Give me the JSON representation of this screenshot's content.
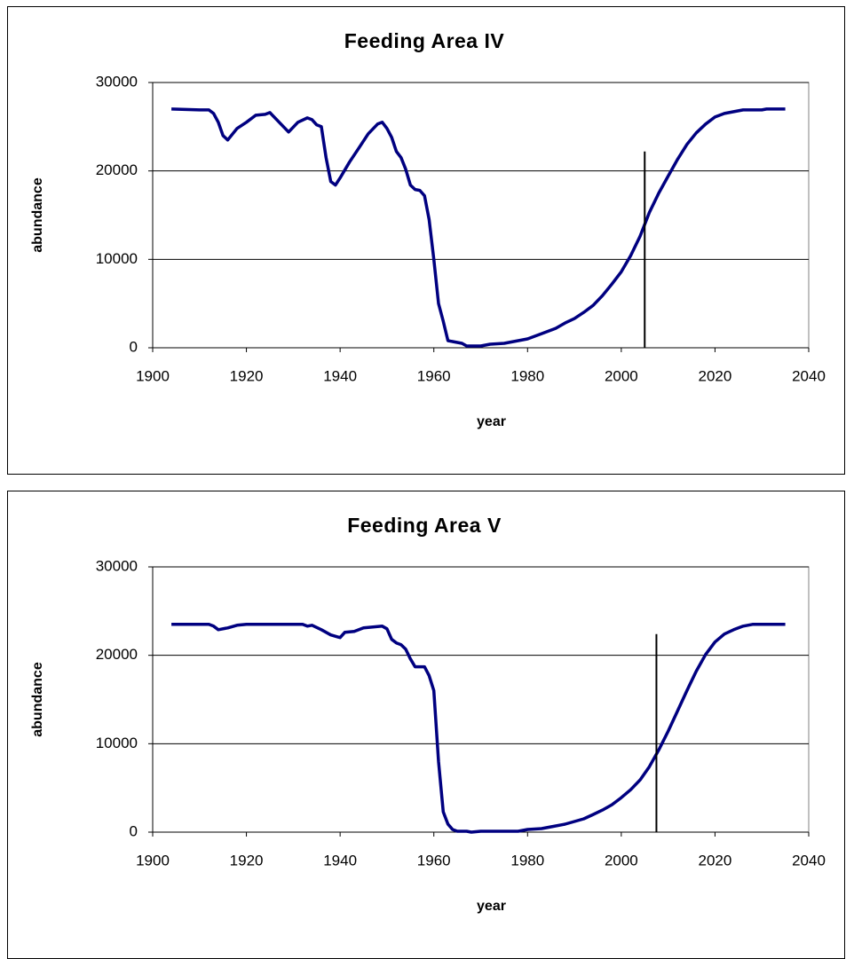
{
  "chart_data": [
    {
      "type": "line",
      "title": "Feeding Area IV",
      "xlabel": "year",
      "ylabel": "abundance",
      "x": [
        1904,
        1910,
        1912,
        1913,
        1914,
        1915,
        1916,
        1918,
        1920,
        1922,
        1924,
        1925,
        1927,
        1929,
        1931,
        1933,
        1934,
        1935,
        1936,
        1937,
        1938,
        1939,
        1940,
        1942,
        1944,
        1946,
        1948,
        1949,
        1950,
        1951,
        1952,
        1953,
        1954,
        1955,
        1956,
        1957,
        1958,
        1959,
        1960,
        1961,
        1962,
        1963,
        1964,
        1966,
        1967,
        1970,
        1972,
        1975,
        1977,
        1980,
        1983,
        1986,
        1988,
        1990,
        1992,
        1994,
        1996,
        1998,
        2000,
        2002,
        2004,
        2006,
        2008,
        2010,
        2012,
        2014,
        2016,
        2018,
        2020,
        2022,
        2024,
        2026,
        2030,
        2031,
        2035
      ],
      "series": [
        {
          "color": "#000080",
          "values": [
            27000,
            26900,
            26900,
            26500,
            25500,
            24000,
            23500,
            24800,
            25500,
            26300,
            26400,
            26600,
            25500,
            24400,
            25500,
            26000,
            25800,
            25200,
            25000,
            21500,
            18800,
            18400,
            19200,
            21000,
            22600,
            24200,
            25300,
            25500,
            24800,
            23800,
            22200,
            21500,
            20200,
            18400,
            17900,
            17800,
            17200,
            14500,
            10000,
            5000,
            3000,
            800,
            700,
            500,
            200,
            200,
            400,
            500,
            700,
            1000,
            1600,
            2200,
            2800,
            3300,
            4000,
            4800,
            5900,
            7200,
            8600,
            10400,
            12600,
            15300,
            17500,
            19400,
            21300,
            23000,
            24300,
            25300,
            26100,
            26500,
            26700,
            26900,
            26900,
            27000,
            27000
          ]
        }
      ],
      "marker": {
        "x": 2005,
        "top": 22200
      },
      "xlim": [
        1900,
        2040
      ],
      "xticks": [
        1900,
        1920,
        1940,
        1960,
        1980,
        2000,
        2020,
        2040
      ],
      "ylim": [
        0,
        30000
      ],
      "yticks": [
        0,
        10000,
        20000,
        30000
      ],
      "grid": true
    },
    {
      "type": "line",
      "title": "Feeding Area V",
      "xlabel": "year",
      "ylabel": "abundance",
      "x": [
        1904,
        1912,
        1913,
        1914,
        1916,
        1918,
        1920,
        1932,
        1933,
        1934,
        1936,
        1938,
        1940,
        1941,
        1943,
        1945,
        1947,
        1949,
        1950,
        1951,
        1952,
        1953,
        1954,
        1955,
        1956,
        1958,
        1959,
        1960,
        1961,
        1962,
        1963,
        1964,
        1965,
        1967,
        1968,
        1970,
        1978,
        1980,
        1983,
        1985,
        1988,
        1990,
        1992,
        1994,
        1996,
        1998,
        2000,
        2002,
        2004,
        2006,
        2008,
        2010,
        2012,
        2014,
        2016,
        2018,
        2020,
        2022,
        2024,
        2026,
        2028,
        2035
      ],
      "series": [
        {
          "color": "#000080",
          "values": [
            23500,
            23500,
            23300,
            22900,
            23100,
            23400,
            23500,
            23500,
            23300,
            23400,
            22900,
            22300,
            22000,
            22600,
            22700,
            23100,
            23200,
            23300,
            23000,
            21800,
            21400,
            21200,
            20700,
            19600,
            18700,
            18700,
            17700,
            16000,
            8000,
            2300,
            900,
            300,
            100,
            100,
            0,
            100,
            100,
            300,
            400,
            600,
            900,
            1200,
            1500,
            2000,
            2500,
            3100,
            3900,
            4800,
            5900,
            7400,
            9300,
            11400,
            13700,
            16000,
            18200,
            20100,
            21500,
            22400,
            22900,
            23300,
            23500,
            23500
          ]
        }
      ],
      "marker": {
        "x": 2007.5,
        "top": 22400
      },
      "xlim": [
        1900,
        2040
      ],
      "xticks": [
        1900,
        1920,
        1940,
        1960,
        1980,
        2000,
        2020,
        2040
      ],
      "ylim": [
        0,
        30000
      ],
      "yticks": [
        0,
        10000,
        20000,
        30000
      ],
      "grid": true
    }
  ]
}
